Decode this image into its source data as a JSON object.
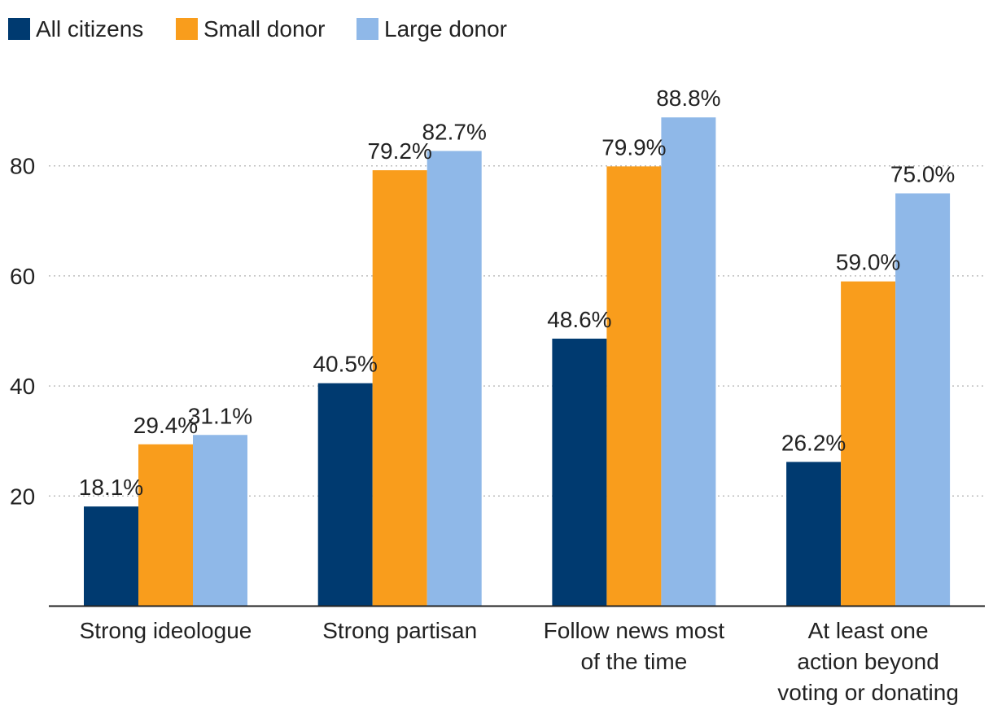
{
  "chart_data": {
    "type": "bar",
    "title": "",
    "xlabel": "",
    "ylabel": "",
    "ylim": [
      0,
      95
    ],
    "yticks": [
      20,
      40,
      60,
      80
    ],
    "grid": true,
    "legend_position": "top-left",
    "categories": [
      [
        "Strong ideologue"
      ],
      [
        "Strong partisan"
      ],
      [
        "Follow news most",
        "of the time"
      ],
      [
        "At least one",
        "action beyond",
        "voting or donating"
      ]
    ],
    "series": [
      {
        "name": "All citizens",
        "color": "#003a70",
        "values": [
          18.1,
          40.5,
          48.6,
          26.2
        ],
        "labels": [
          "18.1%",
          "40.5%",
          "48.6%",
          "26.2%"
        ]
      },
      {
        "name": "Small donor",
        "color": "#f99d1c",
        "values": [
          29.4,
          79.2,
          79.9,
          59.0
        ],
        "labels": [
          "29.4%",
          "79.2%",
          "79.9%",
          "59.0%"
        ]
      },
      {
        "name": "Large donor",
        "color": "#8fb8e8",
        "values": [
          31.1,
          82.7,
          88.8,
          75.0
        ],
        "labels": [
          "31.1%",
          "82.7%",
          "88.8%",
          "75.0%"
        ]
      }
    ]
  }
}
